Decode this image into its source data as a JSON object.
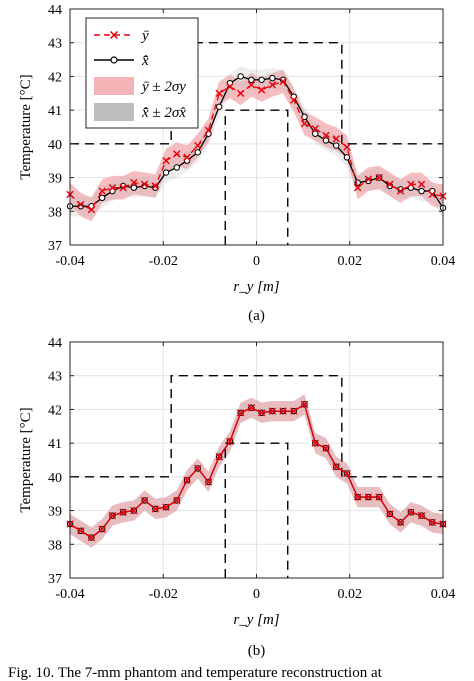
{
  "colors": {
    "measured": "#e8000b",
    "estimate": "#000000",
    "measured_band": "#f4b3b6",
    "estimate_band": "#bdbdbd",
    "outline": "#000000"
  },
  "legend_labels": [
    "ȳ",
    "x̄̂",
    "ȳ ± 2σy",
    "x̄̂ ± 2σx̂"
  ],
  "footer_fragment": "Fig. 10.  The 7-mm phantom and temperature reconstruction at",
  "chart_data": [
    {
      "type": "line",
      "caption": "(a)",
      "xlabel": "r_y [m]",
      "ylabel": "Temperature [°C]",
      "xlim": [
        -0.04,
        0.04
      ],
      "ylim": [
        37,
        44
      ],
      "xticks": [
        "-0.04",
        "-0.02",
        "0",
        "0.02",
        "0.04"
      ],
      "yticks": [
        "37",
        "38",
        "39",
        "40",
        "41",
        "42",
        "43",
        "44"
      ],
      "grid": true,
      "legend": "top-left",
      "x": [
        -0.04,
        -0.0377,
        -0.0354,
        -0.0331,
        -0.0309,
        -0.0286,
        -0.0263,
        -0.024,
        -0.0217,
        -0.0194,
        -0.0171,
        -0.0149,
        -0.0126,
        -0.0103,
        -0.008,
        -0.0057,
        -0.0034,
        -0.0011,
        0.0011,
        0.0034,
        0.0057,
        0.008,
        0.0103,
        0.0126,
        0.0149,
        0.0171,
        0.0194,
        0.0217,
        0.024,
        0.0263,
        0.0286,
        0.0309,
        0.0331,
        0.0354,
        0.0377,
        0.04
      ],
      "series": [
        {
          "name": "ȳ",
          "style": "red-dashed-x",
          "band": 0.35,
          "values": [
            38.5,
            38.2,
            38.05,
            38.6,
            38.7,
            38.7,
            38.85,
            38.8,
            38.75,
            39.5,
            39.7,
            39.6,
            39.95,
            40.4,
            41.5,
            41.7,
            41.5,
            41.75,
            41.6,
            41.75,
            41.85,
            41.3,
            40.6,
            40.45,
            40.25,
            40.15,
            39.9,
            38.7,
            38.95,
            39.0,
            38.8,
            38.6,
            38.8,
            38.8,
            38.5,
            38.45
          ]
        },
        {
          "name": "x̄̂",
          "style": "black-solid-o",
          "band": 0.3,
          "values": [
            38.15,
            38.15,
            38.15,
            38.4,
            38.6,
            38.75,
            38.7,
            38.75,
            38.7,
            39.15,
            39.3,
            39.5,
            39.75,
            40.3,
            41.1,
            41.8,
            42.0,
            41.9,
            41.9,
            41.95,
            41.9,
            41.4,
            40.8,
            40.3,
            40.1,
            39.95,
            39.6,
            38.85,
            38.9,
            39.0,
            38.75,
            38.65,
            38.7,
            38.6,
            38.6,
            38.1
          ]
        }
      ],
      "phantom_outer": {
        "level": 40,
        "step_x": [
          -0.0183,
          0.0183
        ],
        "top": 43
      },
      "phantom_inner": {
        "x": [
          -0.0067,
          0.0067
        ],
        "top": 41
      }
    },
    {
      "type": "line",
      "caption": "(b)",
      "xlabel": "r_y [m]",
      "ylabel": "Temperature [°C]",
      "xlim": [
        -0.04,
        0.04
      ],
      "ylim": [
        37,
        44
      ],
      "xticks": [
        "-0.04",
        "-0.02",
        "0",
        "0.02",
        "0.04"
      ],
      "yticks": [
        "37",
        "38",
        "39",
        "40",
        "41",
        "42",
        "43",
        "44"
      ],
      "grid": true,
      "x": [
        -0.04,
        -0.0377,
        -0.0354,
        -0.0331,
        -0.0309,
        -0.0286,
        -0.0263,
        -0.024,
        -0.0217,
        -0.0194,
        -0.0171,
        -0.0149,
        -0.0126,
        -0.0103,
        -0.008,
        -0.0057,
        -0.0034,
        -0.0011,
        0.0011,
        0.0034,
        0.0057,
        0.008,
        0.0103,
        0.0126,
        0.0149,
        0.0171,
        0.0194,
        0.0217,
        0.024,
        0.0263,
        0.0286,
        0.0309,
        0.0331,
        0.0354,
        0.0377,
        0.04
      ],
      "series": [
        {
          "name": "ȳ",
          "style": "red-dashed-x",
          "band": 0.3,
          "values": [
            38.6,
            38.4,
            38.2,
            38.45,
            38.85,
            38.95,
            39.0,
            39.3,
            39.05,
            39.1,
            39.3,
            39.9,
            40.25,
            39.85,
            40.6,
            41.05,
            41.9,
            42.05,
            41.9,
            41.95,
            41.95,
            41.95,
            42.15,
            41.0,
            40.85,
            40.3,
            40.1,
            39.4,
            39.4,
            39.4,
            38.9,
            38.65,
            38.95,
            38.85,
            38.65,
            38.6
          ]
        },
        {
          "name": "x̄̂",
          "style": "black-solid-o",
          "band": 0.3,
          "values": [
            38.6,
            38.4,
            38.2,
            38.45,
            38.85,
            38.95,
            39.0,
            39.3,
            39.05,
            39.1,
            39.3,
            39.9,
            40.25,
            39.85,
            40.6,
            41.05,
            41.9,
            42.05,
            41.9,
            41.95,
            41.95,
            41.95,
            42.15,
            41.0,
            40.85,
            40.3,
            40.1,
            39.4,
            39.4,
            39.4,
            38.9,
            38.65,
            38.95,
            38.85,
            38.65,
            38.6
          ]
        }
      ],
      "phantom_outer": {
        "level": 40,
        "step_x": [
          -0.0183,
          0.0183
        ],
        "top": 43
      },
      "phantom_inner": {
        "x": [
          -0.0067,
          0.0067
        ],
        "top": 41
      }
    }
  ]
}
